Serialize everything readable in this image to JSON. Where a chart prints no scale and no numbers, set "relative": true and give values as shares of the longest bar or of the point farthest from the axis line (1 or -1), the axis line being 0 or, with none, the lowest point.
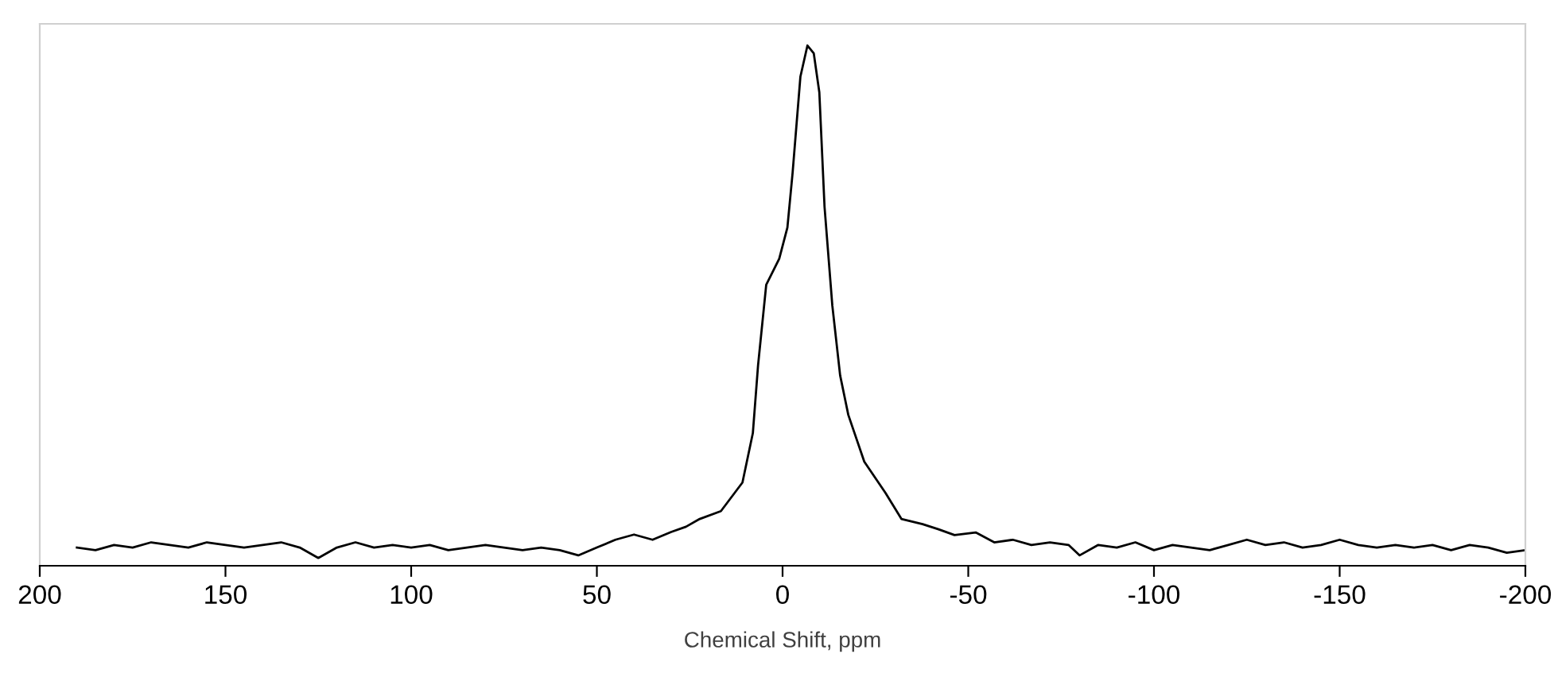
{
  "chart_data": {
    "type": "line",
    "xlabel": "Chemical Shift, ppm",
    "relative": true,
    "xlim": [
      200,
      -200
    ],
    "xticks": [
      200,
      150,
      100,
      50,
      0,
      -50,
      -100,
      -150,
      -200
    ],
    "tick_labels": "x",
    "grid": false,
    "legend": false,
    "series": [
      {
        "color": "#000000",
        "x": [
          190,
          185,
          180,
          175,
          170,
          165,
          160,
          155,
          150,
          145,
          140,
          135,
          130,
          125,
          120,
          115,
          110,
          105,
          100,
          95,
          90,
          85,
          80,
          75,
          70,
          65,
          60,
          55,
          50,
          45,
          40,
          35,
          30,
          26,
          22.3,
          16.6,
          10.8,
          8.0,
          6.6,
          4.4,
          0.9,
          -1.3,
          -2.7,
          -4.8,
          -6.7,
          -8.4,
          -9.9,
          -11.3,
          -13.4,
          -15.5,
          -17.7,
          -22,
          -27.7,
          -32,
          -37.7,
          -42,
          -46.3,
          -52,
          -57,
          -62,
          -67,
          -72,
          -77,
          -80,
          -85,
          -90,
          -95,
          -100,
          -105,
          -110,
          -115,
          -120,
          -125,
          -130,
          -135,
          -140,
          -145,
          -150,
          -155,
          -160,
          -165,
          -170,
          -175,
          -180,
          -185,
          -190,
          -195,
          -200
        ],
        "values": [
          0.035,
          0.03,
          0.04,
          0.035,
          0.045,
          0.04,
          0.035,
          0.045,
          0.04,
          0.035,
          0.04,
          0.045,
          0.035,
          0.015,
          0.035,
          0.045,
          0.035,
          0.04,
          0.035,
          0.04,
          0.03,
          0.035,
          0.04,
          0.035,
          0.03,
          0.035,
          0.03,
          0.02,
          0.035,
          0.05,
          0.06,
          0.05,
          0.065,
          0.075,
          0.09,
          0.105,
          0.16,
          0.255,
          0.385,
          0.54,
          0.59,
          0.65,
          0.755,
          0.94,
          1.0,
          0.985,
          0.91,
          0.69,
          0.5,
          0.366,
          0.29,
          0.2,
          0.14,
          0.09,
          0.08,
          0.07,
          0.059,
          0.064,
          0.045,
          0.05,
          0.04,
          0.045,
          0.04,
          0.02,
          0.04,
          0.035,
          0.045,
          0.03,
          0.04,
          0.035,
          0.03,
          0.04,
          0.05,
          0.04,
          0.045,
          0.035,
          0.04,
          0.05,
          0.04,
          0.035,
          0.04,
          0.035,
          0.04,
          0.03,
          0.04,
          0.035,
          0.025,
          0.03
        ]
      }
    ]
  }
}
